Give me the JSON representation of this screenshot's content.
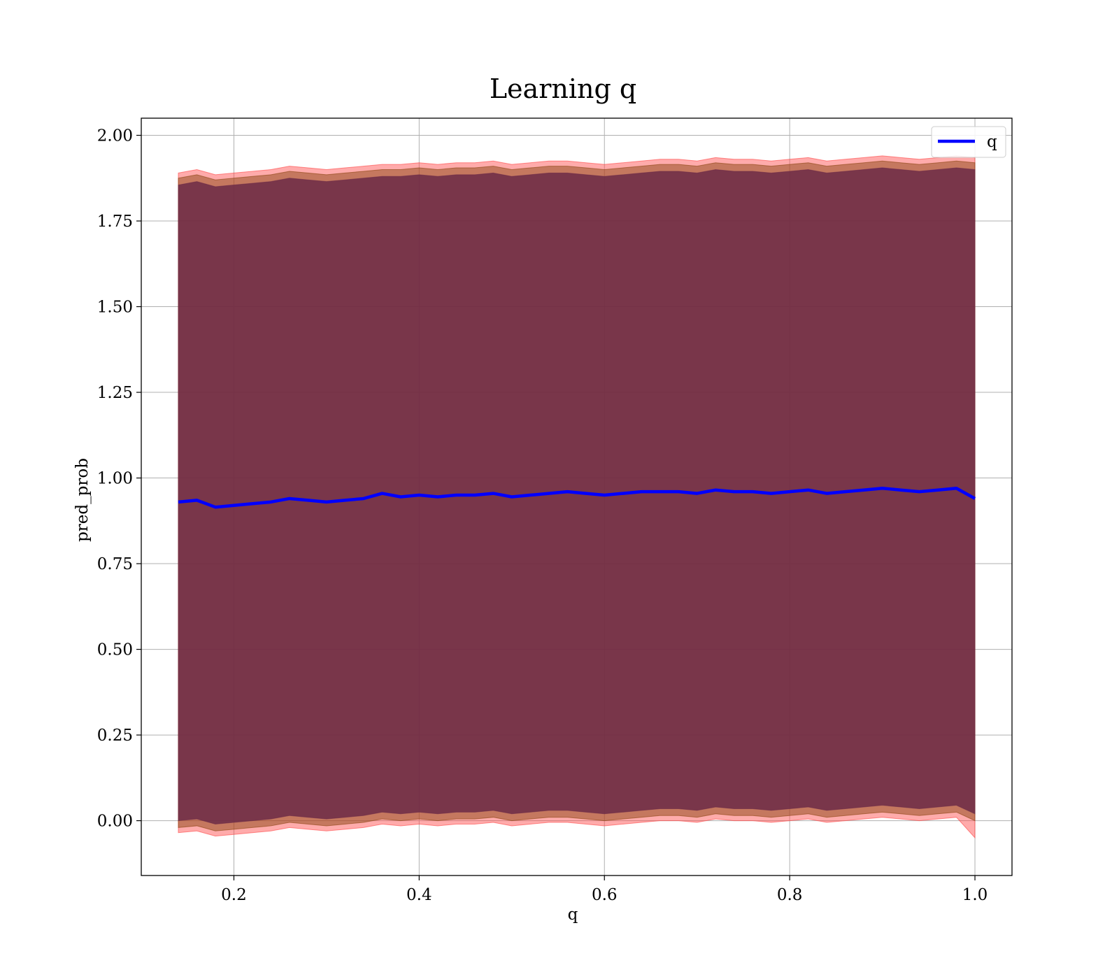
{
  "chart_data": {
    "type": "line",
    "title": "Learning q",
    "xlabel": "q",
    "ylabel": "pred_prob",
    "xlim": [
      0.1,
      1.04
    ],
    "ylim": [
      -0.16,
      2.05
    ],
    "xticks": [
      0.2,
      0.4,
      0.6,
      0.8,
      1.0
    ],
    "xtick_labels": [
      "0.2",
      "0.4",
      "0.6",
      "0.8",
      "1.0"
    ],
    "yticks": [
      0.0,
      0.25,
      0.5,
      0.75,
      1.0,
      1.25,
      1.5,
      1.75,
      2.0
    ],
    "ytick_labels": [
      "0.00",
      "0.25",
      "0.50",
      "0.75",
      "1.00",
      "1.25",
      "1.50",
      "1.75",
      "2.00"
    ],
    "grid": true,
    "legend": {
      "position": "top-right",
      "entries": [
        "q"
      ]
    },
    "series": [
      {
        "name": "q",
        "kind": "line",
        "color": "#0000ff",
        "x": [
          0.14,
          0.16,
          0.18,
          0.2,
          0.22,
          0.24,
          0.26,
          0.28,
          0.3,
          0.32,
          0.34,
          0.36,
          0.38,
          0.4,
          0.42,
          0.44,
          0.46,
          0.48,
          0.5,
          0.52,
          0.54,
          0.56,
          0.58,
          0.6,
          0.62,
          0.64,
          0.66,
          0.68,
          0.7,
          0.72,
          0.74,
          0.76,
          0.78,
          0.8,
          0.82,
          0.84,
          0.86,
          0.88,
          0.9,
          0.92,
          0.94,
          0.96,
          0.98,
          1.0
        ],
        "y": [
          0.93,
          0.935,
          0.915,
          0.92,
          0.925,
          0.93,
          0.94,
          0.935,
          0.93,
          0.935,
          0.94,
          0.955,
          0.945,
          0.95,
          0.945,
          0.95,
          0.95,
          0.955,
          0.945,
          0.95,
          0.955,
          0.96,
          0.955,
          0.95,
          0.955,
          0.96,
          0.96,
          0.96,
          0.955,
          0.965,
          0.96,
          0.96,
          0.955,
          0.96,
          0.965,
          0.955,
          0.96,
          0.965,
          0.97,
          0.965,
          0.96,
          0.965,
          0.97,
          0.94
        ]
      },
      {
        "name": "",
        "kind": "band",
        "color": "#ff4444",
        "x": [
          0.14,
          0.16,
          0.18,
          0.2,
          0.22,
          0.24,
          0.26,
          0.28,
          0.3,
          0.32,
          0.34,
          0.36,
          0.38,
          0.4,
          0.42,
          0.44,
          0.46,
          0.48,
          0.5,
          0.52,
          0.54,
          0.56,
          0.58,
          0.6,
          0.62,
          0.64,
          0.66,
          0.68,
          0.7,
          0.72,
          0.74,
          0.76,
          0.78,
          0.8,
          0.82,
          0.84,
          0.86,
          0.88,
          0.9,
          0.92,
          0.94,
          0.96,
          0.98,
          1.0
        ],
        "upper": [
          1.89,
          1.9,
          1.885,
          1.89,
          1.895,
          1.9,
          1.91,
          1.905,
          1.9,
          1.905,
          1.91,
          1.915,
          1.915,
          1.92,
          1.915,
          1.92,
          1.92,
          1.925,
          1.915,
          1.92,
          1.925,
          1.925,
          1.92,
          1.915,
          1.92,
          1.925,
          1.93,
          1.93,
          1.925,
          1.935,
          1.93,
          1.93,
          1.925,
          1.93,
          1.935,
          1.925,
          1.93,
          1.935,
          1.94,
          1.935,
          1.93,
          1.935,
          1.94,
          1.935
        ],
        "lower": [
          -0.035,
          -0.03,
          -0.045,
          -0.04,
          -0.035,
          -0.03,
          -0.02,
          -0.025,
          -0.03,
          -0.025,
          -0.02,
          -0.01,
          -0.015,
          -0.01,
          -0.015,
          -0.01,
          -0.01,
          -0.005,
          -0.015,
          -0.01,
          -0.005,
          -0.005,
          -0.01,
          -0.015,
          -0.01,
          -0.005,
          0.0,
          0.0,
          -0.005,
          0.005,
          0.0,
          0.0,
          -0.005,
          0.0,
          0.005,
          -0.005,
          0.0,
          0.005,
          0.01,
          0.005,
          0.0,
          0.005,
          0.01,
          -0.05
        ]
      },
      {
        "name": "",
        "kind": "band",
        "color": "#8b4513",
        "x": [
          0.14,
          0.16,
          0.18,
          0.2,
          0.22,
          0.24,
          0.26,
          0.28,
          0.3,
          0.32,
          0.34,
          0.36,
          0.38,
          0.4,
          0.42,
          0.44,
          0.46,
          0.48,
          0.5,
          0.52,
          0.54,
          0.56,
          0.58,
          0.6,
          0.62,
          0.64,
          0.66,
          0.68,
          0.7,
          0.72,
          0.74,
          0.76,
          0.78,
          0.8,
          0.82,
          0.84,
          0.86,
          0.88,
          0.9,
          0.92,
          0.94,
          0.96,
          0.98,
          1.0
        ],
        "upper": [
          1.875,
          1.885,
          1.87,
          1.875,
          1.88,
          1.885,
          1.895,
          1.89,
          1.885,
          1.89,
          1.895,
          1.9,
          1.9,
          1.905,
          1.9,
          1.905,
          1.905,
          1.91,
          1.9,
          1.905,
          1.91,
          1.91,
          1.905,
          1.9,
          1.905,
          1.91,
          1.915,
          1.915,
          1.91,
          1.92,
          1.915,
          1.915,
          1.91,
          1.915,
          1.92,
          1.91,
          1.915,
          1.92,
          1.925,
          1.92,
          1.915,
          1.92,
          1.925,
          1.92
        ],
        "lower": [
          -0.02,
          -0.015,
          -0.03,
          -0.025,
          -0.02,
          -0.015,
          -0.005,
          -0.01,
          -0.015,
          -0.01,
          -0.005,
          0.005,
          0.0,
          0.005,
          0.0,
          0.005,
          0.005,
          0.01,
          0.0,
          0.005,
          0.01,
          0.01,
          0.005,
          0.0,
          0.005,
          0.01,
          0.015,
          0.015,
          0.01,
          0.02,
          0.015,
          0.015,
          0.01,
          0.015,
          0.02,
          0.01,
          0.015,
          0.02,
          0.025,
          0.02,
          0.015,
          0.02,
          0.025,
          0.0
        ]
      },
      {
        "name": "",
        "kind": "band",
        "color": "#6b2a47",
        "x": [
          0.14,
          0.16,
          0.18,
          0.2,
          0.22,
          0.24,
          0.26,
          0.28,
          0.3,
          0.32,
          0.34,
          0.36,
          0.38,
          0.4,
          0.42,
          0.44,
          0.46,
          0.48,
          0.5,
          0.52,
          0.54,
          0.56,
          0.58,
          0.6,
          0.62,
          0.64,
          0.66,
          0.68,
          0.7,
          0.72,
          0.74,
          0.76,
          0.78,
          0.8,
          0.82,
          0.84,
          0.86,
          0.88,
          0.9,
          0.92,
          0.94,
          0.96,
          0.98,
          1.0
        ],
        "upper": [
          1.855,
          1.865,
          1.85,
          1.855,
          1.86,
          1.865,
          1.875,
          1.87,
          1.865,
          1.87,
          1.875,
          1.88,
          1.88,
          1.885,
          1.88,
          1.885,
          1.885,
          1.89,
          1.88,
          1.885,
          1.89,
          1.89,
          1.885,
          1.88,
          1.885,
          1.89,
          1.895,
          1.895,
          1.89,
          1.9,
          1.895,
          1.895,
          1.89,
          1.895,
          1.9,
          1.89,
          1.895,
          1.9,
          1.905,
          1.9,
          1.895,
          1.9,
          1.905,
          1.9
        ],
        "lower": [
          0.0,
          0.005,
          -0.01,
          -0.005,
          0.0,
          0.005,
          0.015,
          0.01,
          0.005,
          0.01,
          0.015,
          0.025,
          0.02,
          0.025,
          0.02,
          0.025,
          0.025,
          0.03,
          0.02,
          0.025,
          0.03,
          0.03,
          0.025,
          0.02,
          0.025,
          0.03,
          0.035,
          0.035,
          0.03,
          0.04,
          0.035,
          0.035,
          0.03,
          0.035,
          0.04,
          0.03,
          0.035,
          0.04,
          0.045,
          0.04,
          0.035,
          0.04,
          0.045,
          0.02
        ]
      }
    ]
  }
}
